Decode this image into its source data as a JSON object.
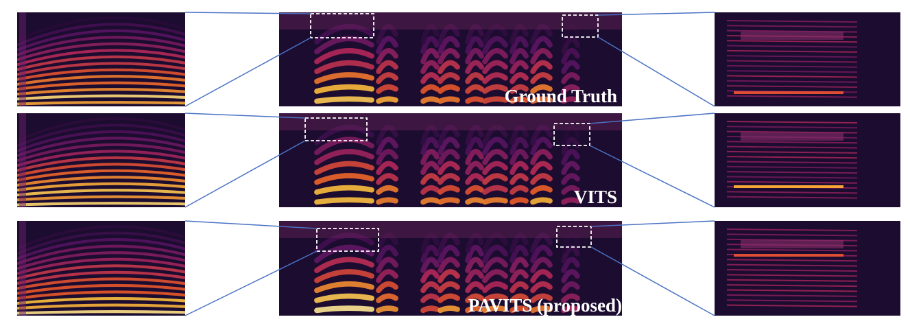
{
  "rows": [
    {
      "label": "Ground Truth"
    },
    {
      "label": "VITS"
    },
    {
      "label": "PAVITS (proposed)"
    }
  ]
}
